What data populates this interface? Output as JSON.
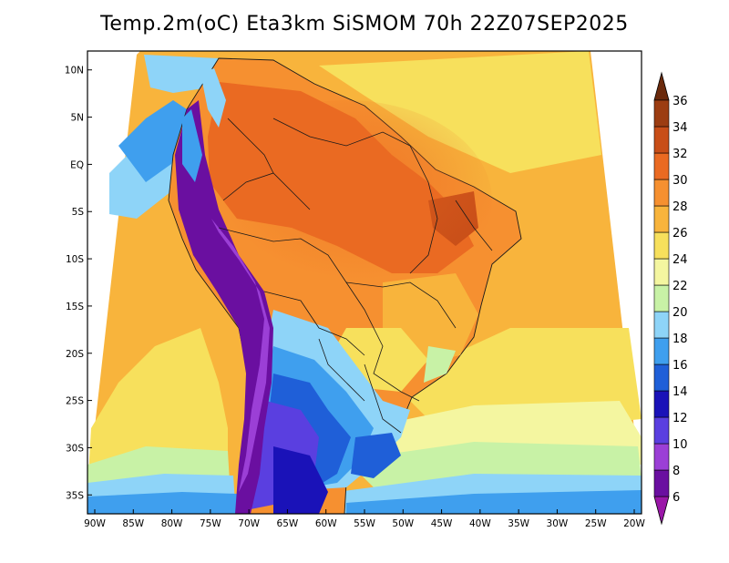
{
  "title": "Temp.2m(oC) Eta3km SiSMOM 70h 22Z07SEP2025",
  "map": {
    "lon_range": [
      -90,
      -20
    ],
    "lat_range": [
      -37,
      12
    ],
    "lat_ticks": [
      {
        "value": 10,
        "label": "10N"
      },
      {
        "value": 5,
        "label": "5N"
      },
      {
        "value": 0,
        "label": "EQ"
      },
      {
        "value": -5,
        "label": "5S"
      },
      {
        "value": -10,
        "label": "10S"
      },
      {
        "value": -15,
        "label": "15S"
      },
      {
        "value": -20,
        "label": "20S"
      },
      {
        "value": -25,
        "label": "25S"
      },
      {
        "value": -30,
        "label": "30S"
      },
      {
        "value": -35,
        "label": "35S"
      }
    ],
    "lon_ticks": [
      {
        "value": -90,
        "label": "90W"
      },
      {
        "value": -85,
        "label": "85W"
      },
      {
        "value": -80,
        "label": "80W"
      },
      {
        "value": -75,
        "label": "75W"
      },
      {
        "value": -70,
        "label": "70W"
      },
      {
        "value": -65,
        "label": "65W"
      },
      {
        "value": -60,
        "label": "60W"
      },
      {
        "value": -55,
        "label": "55W"
      },
      {
        "value": -50,
        "label": "50W"
      },
      {
        "value": -45,
        "label": "45W"
      },
      {
        "value": -40,
        "label": "40W"
      },
      {
        "value": -35,
        "label": "35W"
      },
      {
        "value": -30,
        "label": "30W"
      },
      {
        "value": -25,
        "label": "25W"
      },
      {
        "value": -20,
        "label": "20W"
      }
    ]
  },
  "colorbar": {
    "unit": "oC",
    "labels": [
      "6",
      "8",
      "10",
      "12",
      "14",
      "16",
      "18",
      "20",
      "22",
      "24",
      "26",
      "28",
      "30",
      "32",
      "34",
      "36"
    ],
    "colors": [
      "#9a17a8",
      "#6a0fa0",
      "#9b3fd6",
      "#5a3fe0",
      "#1a12b8",
      "#1f5fd8",
      "#3f9fee",
      "#8ed4f8",
      "#c8f2a6",
      "#f4f6a0",
      "#f7e05c",
      "#f8b43c",
      "#f69030",
      "#ea6a22",
      "#c84e18",
      "#9c3d12",
      "#6b2a0c"
    ]
  }
}
